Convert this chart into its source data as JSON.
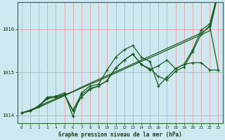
{
  "xlabel": "Graphe pression niveau de la mer (hPa)",
  "background_color": "#cce8f0",
  "grid_color": "#e8a0a0",
  "line_color": "#1a5c1a",
  "hours": [
    0,
    1,
    2,
    3,
    4,
    5,
    6,
    7,
    8,
    9,
    10,
    11,
    12,
    13,
    14,
    15,
    16,
    17,
    18,
    19,
    20,
    21,
    22,
    23
  ],
  "series_linear1": [
    1014.05,
    1014.1,
    1014.18,
    1014.27,
    1014.36,
    1014.45,
    1014.54,
    1014.63,
    1014.72,
    1014.8,
    1014.89,
    1014.98,
    1015.07,
    1015.16,
    1015.25,
    1015.33,
    1015.42,
    1015.51,
    1015.6,
    1015.69,
    1015.78,
    1015.87,
    1015.96,
    1016.85
  ],
  "series_linear2": [
    1014.05,
    1014.12,
    1014.2,
    1014.3,
    1014.38,
    1014.47,
    1014.55,
    1014.65,
    1014.74,
    1014.83,
    1014.92,
    1015.01,
    1015.1,
    1015.19,
    1015.28,
    1015.37,
    1015.46,
    1015.55,
    1015.64,
    1015.73,
    1015.82,
    1015.91,
    1016.05,
    1016.85
  ],
  "series_main": [
    1014.05,
    1014.1,
    1014.2,
    1014.42,
    1014.44,
    1014.52,
    1013.97,
    1014.52,
    1014.68,
    1014.72,
    1015.05,
    1015.35,
    1015.52,
    1015.62,
    1015.35,
    1015.25,
    1014.68,
    1014.88,
    1015.08,
    1015.18,
    1015.52,
    1015.98,
    1016.12,
    1016.88
  ],
  "series_mid1": [
    1014.05,
    1014.1,
    1014.22,
    1014.4,
    1014.42,
    1014.48,
    1014.1,
    1014.42,
    1014.6,
    1014.68,
    1014.8,
    1015.1,
    1015.28,
    1015.42,
    1015.18,
    1015.08,
    1014.9,
    1014.82,
    1015.02,
    1015.12,
    1015.48,
    1015.88,
    1016.08,
    1015.05
  ],
  "series_mid2": [
    1014.05,
    1014.1,
    1014.2,
    1014.38,
    1014.42,
    1014.48,
    1014.12,
    1014.48,
    1014.62,
    1014.68,
    1014.8,
    1015.1,
    1015.28,
    1015.42,
    1015.18,
    1015.05,
    1015.15,
    1015.28,
    1015.08,
    1015.18,
    1015.22,
    1015.22,
    1015.05,
    1015.05
  ],
  "ylim": [
    1013.82,
    1016.62
  ],
  "yticks": [
    1014,
    1015,
    1016
  ],
  "xlim": [
    -0.5,
    23.5
  ],
  "figsize": [
    3.2,
    2.0
  ],
  "dpi": 100
}
